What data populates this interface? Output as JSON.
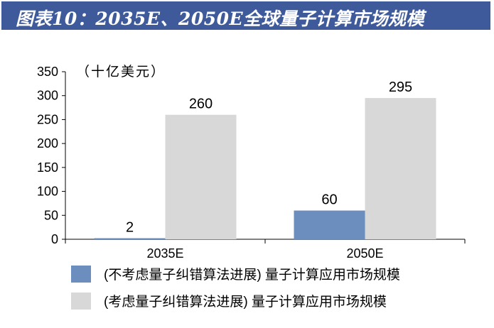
{
  "header": {
    "title": "图表10：2035E、2050E全球量子计算市场规模"
  },
  "colors": {
    "title_bg": "#3f5a9a",
    "series_1": "#6c8ebf",
    "series_2": "#d8d8d9",
    "axis": "#000000"
  },
  "chart_data": {
    "type": "bar",
    "unit_label": "（十亿美元）",
    "categories": [
      "2035E",
      "2050E"
    ],
    "series": [
      {
        "name": "(不考虑量子纠错算法进展) 量子计算应用市场规模",
        "values": [
          2,
          60
        ],
        "color": "#6c8ebf"
      },
      {
        "name": "(考虑量子纠错算法进展) 量子计算应用市场规模",
        "values": [
          260,
          295
        ],
        "color": "#d8d8d9"
      }
    ],
    "y_ticks": [
      0,
      50,
      100,
      150,
      200,
      250,
      300,
      350
    ],
    "ylim": [
      0,
      350
    ],
    "grid": false,
    "legend_position": "bottom"
  }
}
